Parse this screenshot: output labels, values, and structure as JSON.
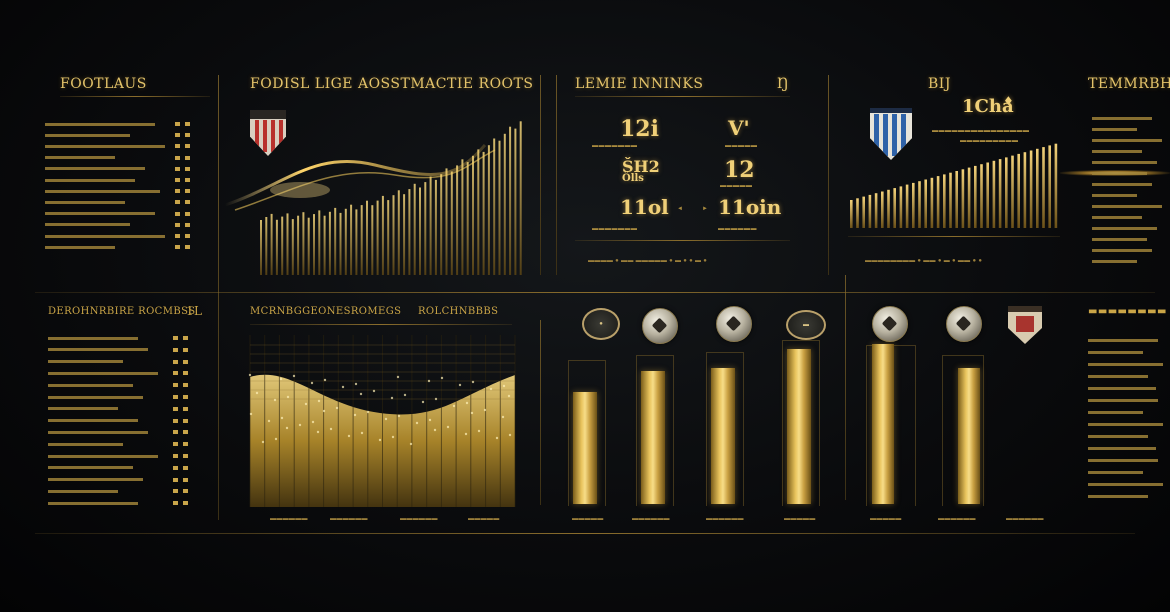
{
  "panels": {
    "top_left": {
      "title": "FOOTLAUS"
    },
    "top_center": {
      "title": "FODISL LIGE AOSSTMACTIE ROOTS"
    },
    "top_stats": {
      "title": "LEMIE INNINKS",
      "title_mark": "Ŋ",
      "values": [
        "12i",
        "V'",
        "ŠH2",
        "12",
        "11ol",
        "11oin"
      ],
      "sublabel": "Ölls"
    },
    "top_right": {
      "title": "BIJ",
      "headline": "1Cha",
      "headline_mark": "♦"
    },
    "far_right": {
      "title": "TEMMRBHNGRAN"
    },
    "bottom_left": {
      "title": "DEROHNRBIRE ROCMBSS",
      "mark": "1L"
    },
    "bottom_center": {
      "title": "MCRNBGGEONESROMEGS",
      "subtitle": "ROLCHNBBBS"
    }
  },
  "colors": {
    "gold": "#e8c35c",
    "background": "#050607",
    "crest_red": "#b8312c",
    "crest_blue": "#2f62a8"
  },
  "icons": [
    "shield-crest-red",
    "shield-crest-blue",
    "soccer-ball-icon",
    "club-emblem-icon"
  ],
  "bar_levels": {
    "group_a": [
      0.72,
      0.86,
      0.88,
      1.0
    ],
    "group_b": [
      1.0,
      0.85
    ]
  }
}
